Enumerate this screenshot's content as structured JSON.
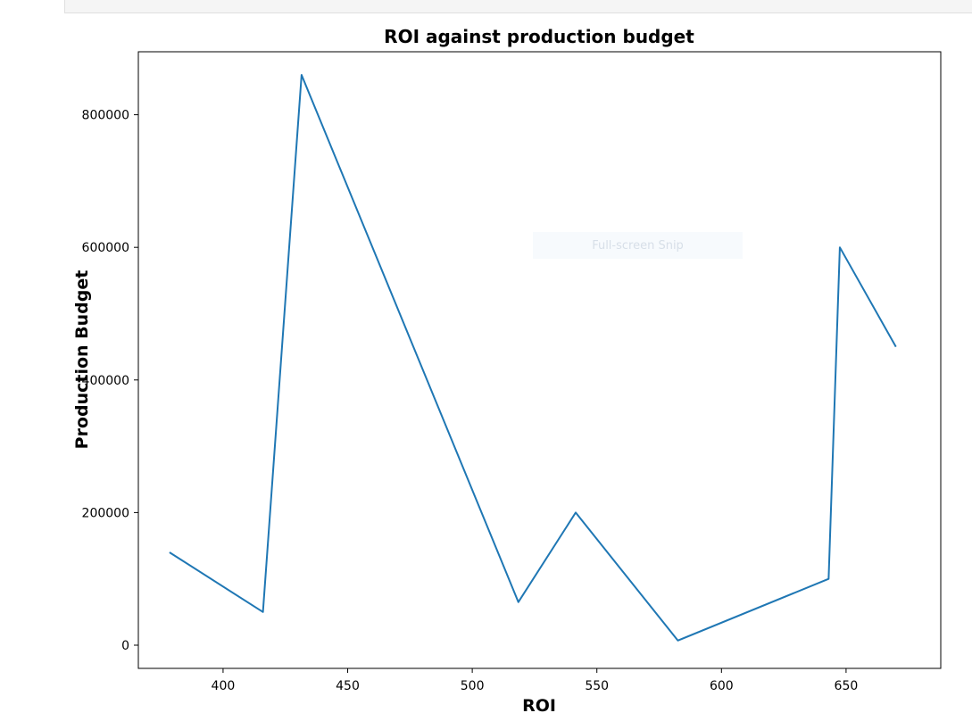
{
  "chart_data": {
    "type": "line",
    "title": "ROI against production budget",
    "xlabel": "ROI",
    "ylabel": "Production Budget",
    "xlim": [
      366,
      688
    ],
    "ylim": [
      -35000,
      895000
    ],
    "xticks": [
      400,
      450,
      500,
      550,
      600,
      650
    ],
    "yticks": [
      0,
      200000,
      400000,
      600000,
      800000
    ],
    "grid": false,
    "series": [
      {
        "color": "#1f77b4",
        "x": [
          378.5,
          416,
          431.5,
          518.5,
          541.5,
          582.5,
          643,
          647.5,
          670
        ],
        "y": [
          140000,
          50000,
          860000,
          65000,
          200000,
          7000,
          100000,
          600000,
          450000
        ]
      }
    ]
  },
  "overlay": {
    "label": "Full-screen Snip"
  }
}
